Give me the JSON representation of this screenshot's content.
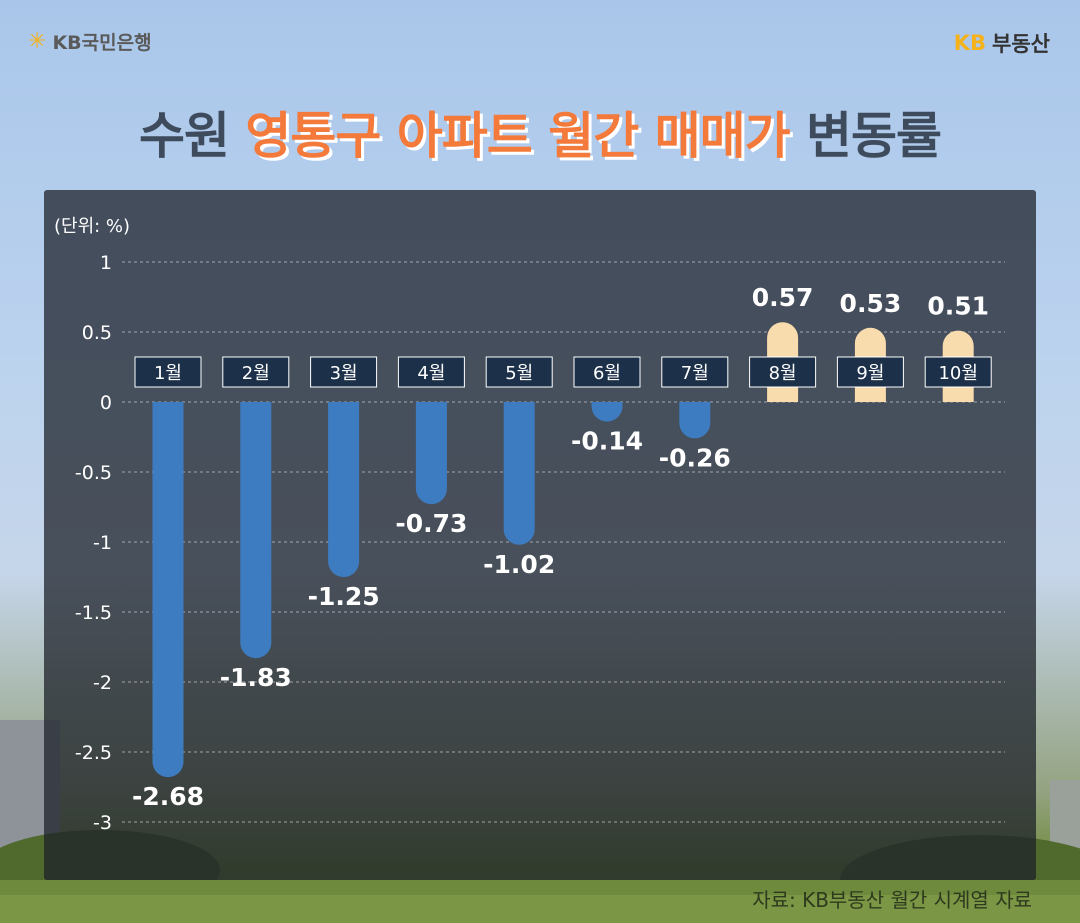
{
  "header": {
    "left_logo_text": "KB국민은행",
    "right_logo_kb": "KB",
    "right_logo_text": "부동산"
  },
  "title": {
    "prefix": "수원",
    "highlight": "영통구 아파트 월간 매매가",
    "suffix": "변동률"
  },
  "unit_label": "(단위: %)",
  "source": "자료: KB부동산 월간 시계열 자료",
  "colors": {
    "negative_bar": "#3d7cc0",
    "positive_bar": "#f9dcae",
    "title_highlight": "#f47a3c",
    "month_label_bg": "#1c3149"
  },
  "chart_data": {
    "type": "bar",
    "categories": [
      "1월",
      "2월",
      "3월",
      "4월",
      "5월",
      "6월",
      "7월",
      "8월",
      "9월",
      "10월"
    ],
    "values": [
      -2.68,
      -1.83,
      -1.25,
      -0.73,
      -1.02,
      -0.14,
      -0.26,
      0.57,
      0.53,
      0.51
    ],
    "value_labels": [
      "-2.68",
      "-1.83",
      "-1.25",
      "-0.73",
      "-1.02",
      "-0.14",
      "-0.26",
      "0.57",
      "0.53",
      "0.51"
    ],
    "yticks": [
      "1",
      "0.5",
      "0",
      "-0.5",
      "-1",
      "-1.5",
      "-2",
      "-2.5",
      "-3"
    ],
    "ylim": [
      -3,
      1
    ],
    "grid": true
  }
}
